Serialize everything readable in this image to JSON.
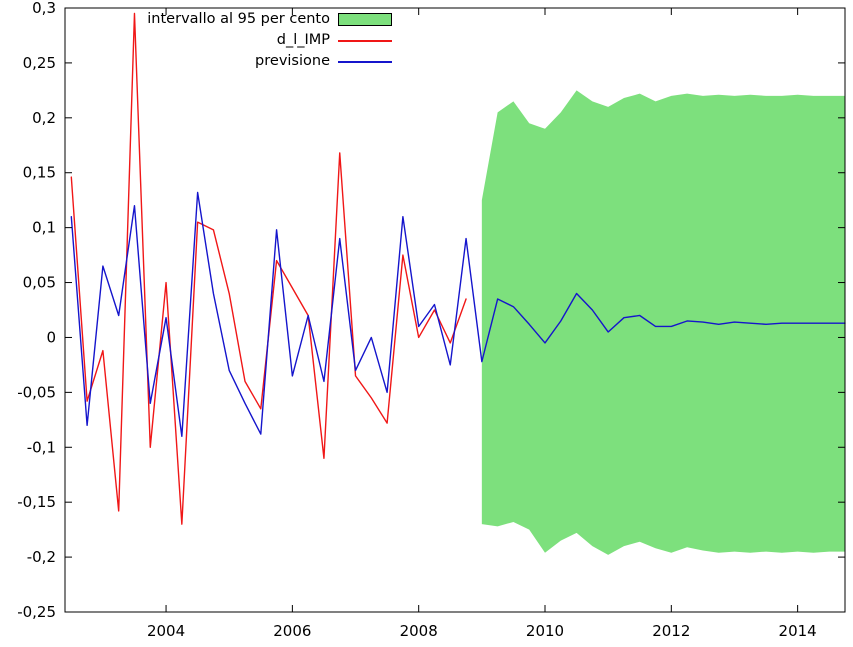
{
  "chart_data": {
    "type": "line",
    "title": "",
    "background": "#ffffff",
    "border_color": "#000000",
    "grid": false,
    "legend_position": "top-left-inside",
    "x_axis": {
      "min": 2002.4,
      "max": 2014.75,
      "ticks": [
        2004,
        2006,
        2008,
        2010,
        2012,
        2014
      ],
      "tick_labels": [
        "2004",
        "2006",
        "2008",
        "2010",
        "2012",
        "2014"
      ]
    },
    "y_axis": {
      "min": -0.25,
      "max": 0.3,
      "ticks": [
        0.3,
        0.25,
        0.2,
        0.15,
        0.1,
        0.05,
        0,
        -0.05,
        -0.1,
        -0.15,
        -0.2,
        -0.25
      ],
      "tick_labels": [
        "0,3",
        "0,25",
        "0,2",
        "0,15",
        "0,1",
        "0,05",
        "0",
        "-0,05",
        "-0,1",
        "-0,15",
        "-0,2",
        "-0,25"
      ]
    },
    "band": {
      "name": "intervallo al 95 per cento",
      "color": "#7de07d",
      "x": [
        2009,
        2009.25,
        2009.5,
        2009.75,
        2010,
        2010.25,
        2010.5,
        2010.75,
        2011,
        2011.25,
        2011.5,
        2011.75,
        2012,
        2012.25,
        2012.5,
        2012.75,
        2013,
        2013.25,
        2013.5,
        2013.75,
        2014,
        2014.25,
        2014.5,
        2014.75
      ],
      "upper": [
        0.125,
        0.205,
        0.215,
        0.195,
        0.19,
        0.205,
        0.225,
        0.215,
        0.21,
        0.218,
        0.222,
        0.215,
        0.22,
        0.222,
        0.22,
        0.221,
        0.22,
        0.221,
        0.22,
        0.22,
        0.221,
        0.22,
        0.22,
        0.22
      ],
      "lower": [
        -0.17,
        -0.172,
        -0.168,
        -0.175,
        -0.196,
        -0.185,
        -0.178,
        -0.19,
        -0.198,
        -0.19,
        -0.186,
        -0.192,
        -0.196,
        -0.191,
        -0.194,
        -0.196,
        -0.195,
        -0.196,
        -0.195,
        -0.196,
        -0.195,
        -0.196,
        -0.195,
        -0.195
      ]
    },
    "series": [
      {
        "name": "d_l_IMP",
        "color": "#f01717",
        "x": [
          2002.5,
          2002.75,
          2003,
          2003.25,
          2003.5,
          2003.75,
          2004,
          2004.25,
          2004.5,
          2004.75,
          2005,
          2005.25,
          2005.5,
          2005.75,
          2006,
          2006.25,
          2006.5,
          2006.75,
          2007,
          2007.25,
          2007.5,
          2007.75,
          2008,
          2008.25,
          2008.5,
          2008.75
        ],
        "y": [
          0.146,
          -0.058,
          -0.012,
          -0.158,
          0.295,
          -0.1,
          0.05,
          -0.17,
          0.105,
          0.098,
          0.04,
          -0.04,
          -0.065,
          0.07,
          0.045,
          0.02,
          -0.11,
          0.168,
          -0.035,
          -0.055,
          -0.078,
          0.075,
          0,
          0.025,
          -0.005,
          0.035
        ]
      },
      {
        "name": "previsione",
        "color": "#1515cc",
        "x": [
          2002.5,
          2002.75,
          2003,
          2003.25,
          2003.5,
          2003.75,
          2004,
          2004.25,
          2004.5,
          2004.75,
          2005,
          2005.25,
          2005.5,
          2005.75,
          2006,
          2006.25,
          2006.5,
          2006.75,
          2007,
          2007.25,
          2007.5,
          2007.75,
          2008,
          2008.25,
          2008.5,
          2008.75,
          2009,
          2009.25,
          2009.5,
          2009.75,
          2010,
          2010.25,
          2010.5,
          2010.75,
          2011,
          2011.25,
          2011.5,
          2011.75,
          2012,
          2012.25,
          2012.5,
          2012.75,
          2013,
          2013.25,
          2013.5,
          2013.75,
          2014,
          2014.25,
          2014.5,
          2014.75
        ],
        "y": [
          0.11,
          -0.08,
          0.065,
          0.02,
          0.12,
          -0.06,
          0.018,
          -0.09,
          0.132,
          0.04,
          -0.03,
          -0.06,
          -0.088,
          0.098,
          -0.035,
          0.02,
          -0.04,
          0.09,
          -0.03,
          0,
          -0.05,
          0.11,
          0.01,
          0.03,
          -0.025,
          0.09,
          -0.022,
          0.035,
          0.028,
          0.012,
          -0.005,
          0.015,
          0.04,
          0.025,
          0.005,
          0.018,
          0.02,
          0.01,
          0.01,
          0.015,
          0.014,
          0.012,
          0.014,
          0.013,
          0.012,
          0.013,
          0.013,
          0.013,
          0.013,
          0.013
        ]
      }
    ]
  }
}
